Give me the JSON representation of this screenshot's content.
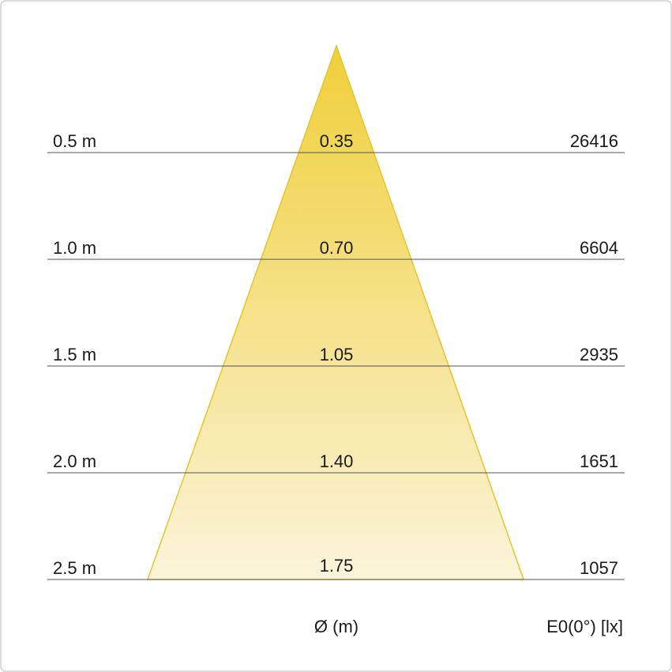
{
  "rows": [
    {
      "distance": "0.5 m",
      "diameter": "0.35",
      "illuminance": "26416"
    },
    {
      "distance": "1.0 m",
      "diameter": "0.70",
      "illuminance": "6604"
    },
    {
      "distance": "1.5 m",
      "diameter": "1.05",
      "illuminance": "2935"
    },
    {
      "distance": "2.0 m",
      "diameter": "1.40",
      "illuminance": "1651"
    },
    {
      "distance": "2.5 m",
      "diameter": "1.75",
      "illuminance": "1057"
    }
  ],
  "footer": {
    "diameter_label": "Ø (m)",
    "illuminance_label": "E0(0°) [lx]"
  }
}
